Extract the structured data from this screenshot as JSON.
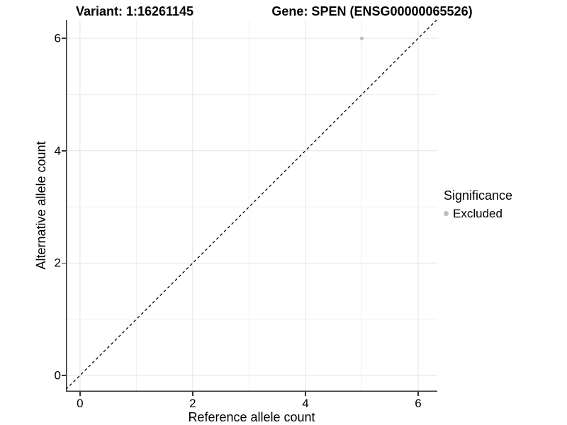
{
  "chart_data": {
    "type": "scatter",
    "title_left": "Variant: 1:16261145",
    "title_right": "Gene: SPEN (ENSG00000065526)",
    "xlabel": "Reference allele count",
    "ylabel": "Alternative allele count",
    "xlim": [
      -0.25,
      6.34
    ],
    "ylim": [
      -0.29,
      6.33
    ],
    "xticks": [
      0,
      2,
      4,
      6
    ],
    "yticks": [
      0,
      2,
      4,
      6
    ],
    "minor_ticks": [
      1,
      3,
      5
    ],
    "grid": true,
    "reference_line": {
      "type": "abline",
      "slope": 1,
      "intercept": 0,
      "style": "dashed",
      "color": "#000000"
    },
    "series": [
      {
        "name": "Excluded",
        "color": "#bebebe",
        "points": [
          {
            "x": 5,
            "y": 6
          }
        ]
      }
    ],
    "legend": {
      "title": "Significance",
      "position": "right",
      "items": [
        {
          "label": "Excluded",
          "color": "#bebebe"
        }
      ]
    }
  },
  "colors": {
    "background": "#ffffff",
    "axis_line": "#333333",
    "grid_major": "#e3e3e3",
    "grid_minor": "#f0f0f0",
    "text": "#000000",
    "point": "#bebebe"
  }
}
